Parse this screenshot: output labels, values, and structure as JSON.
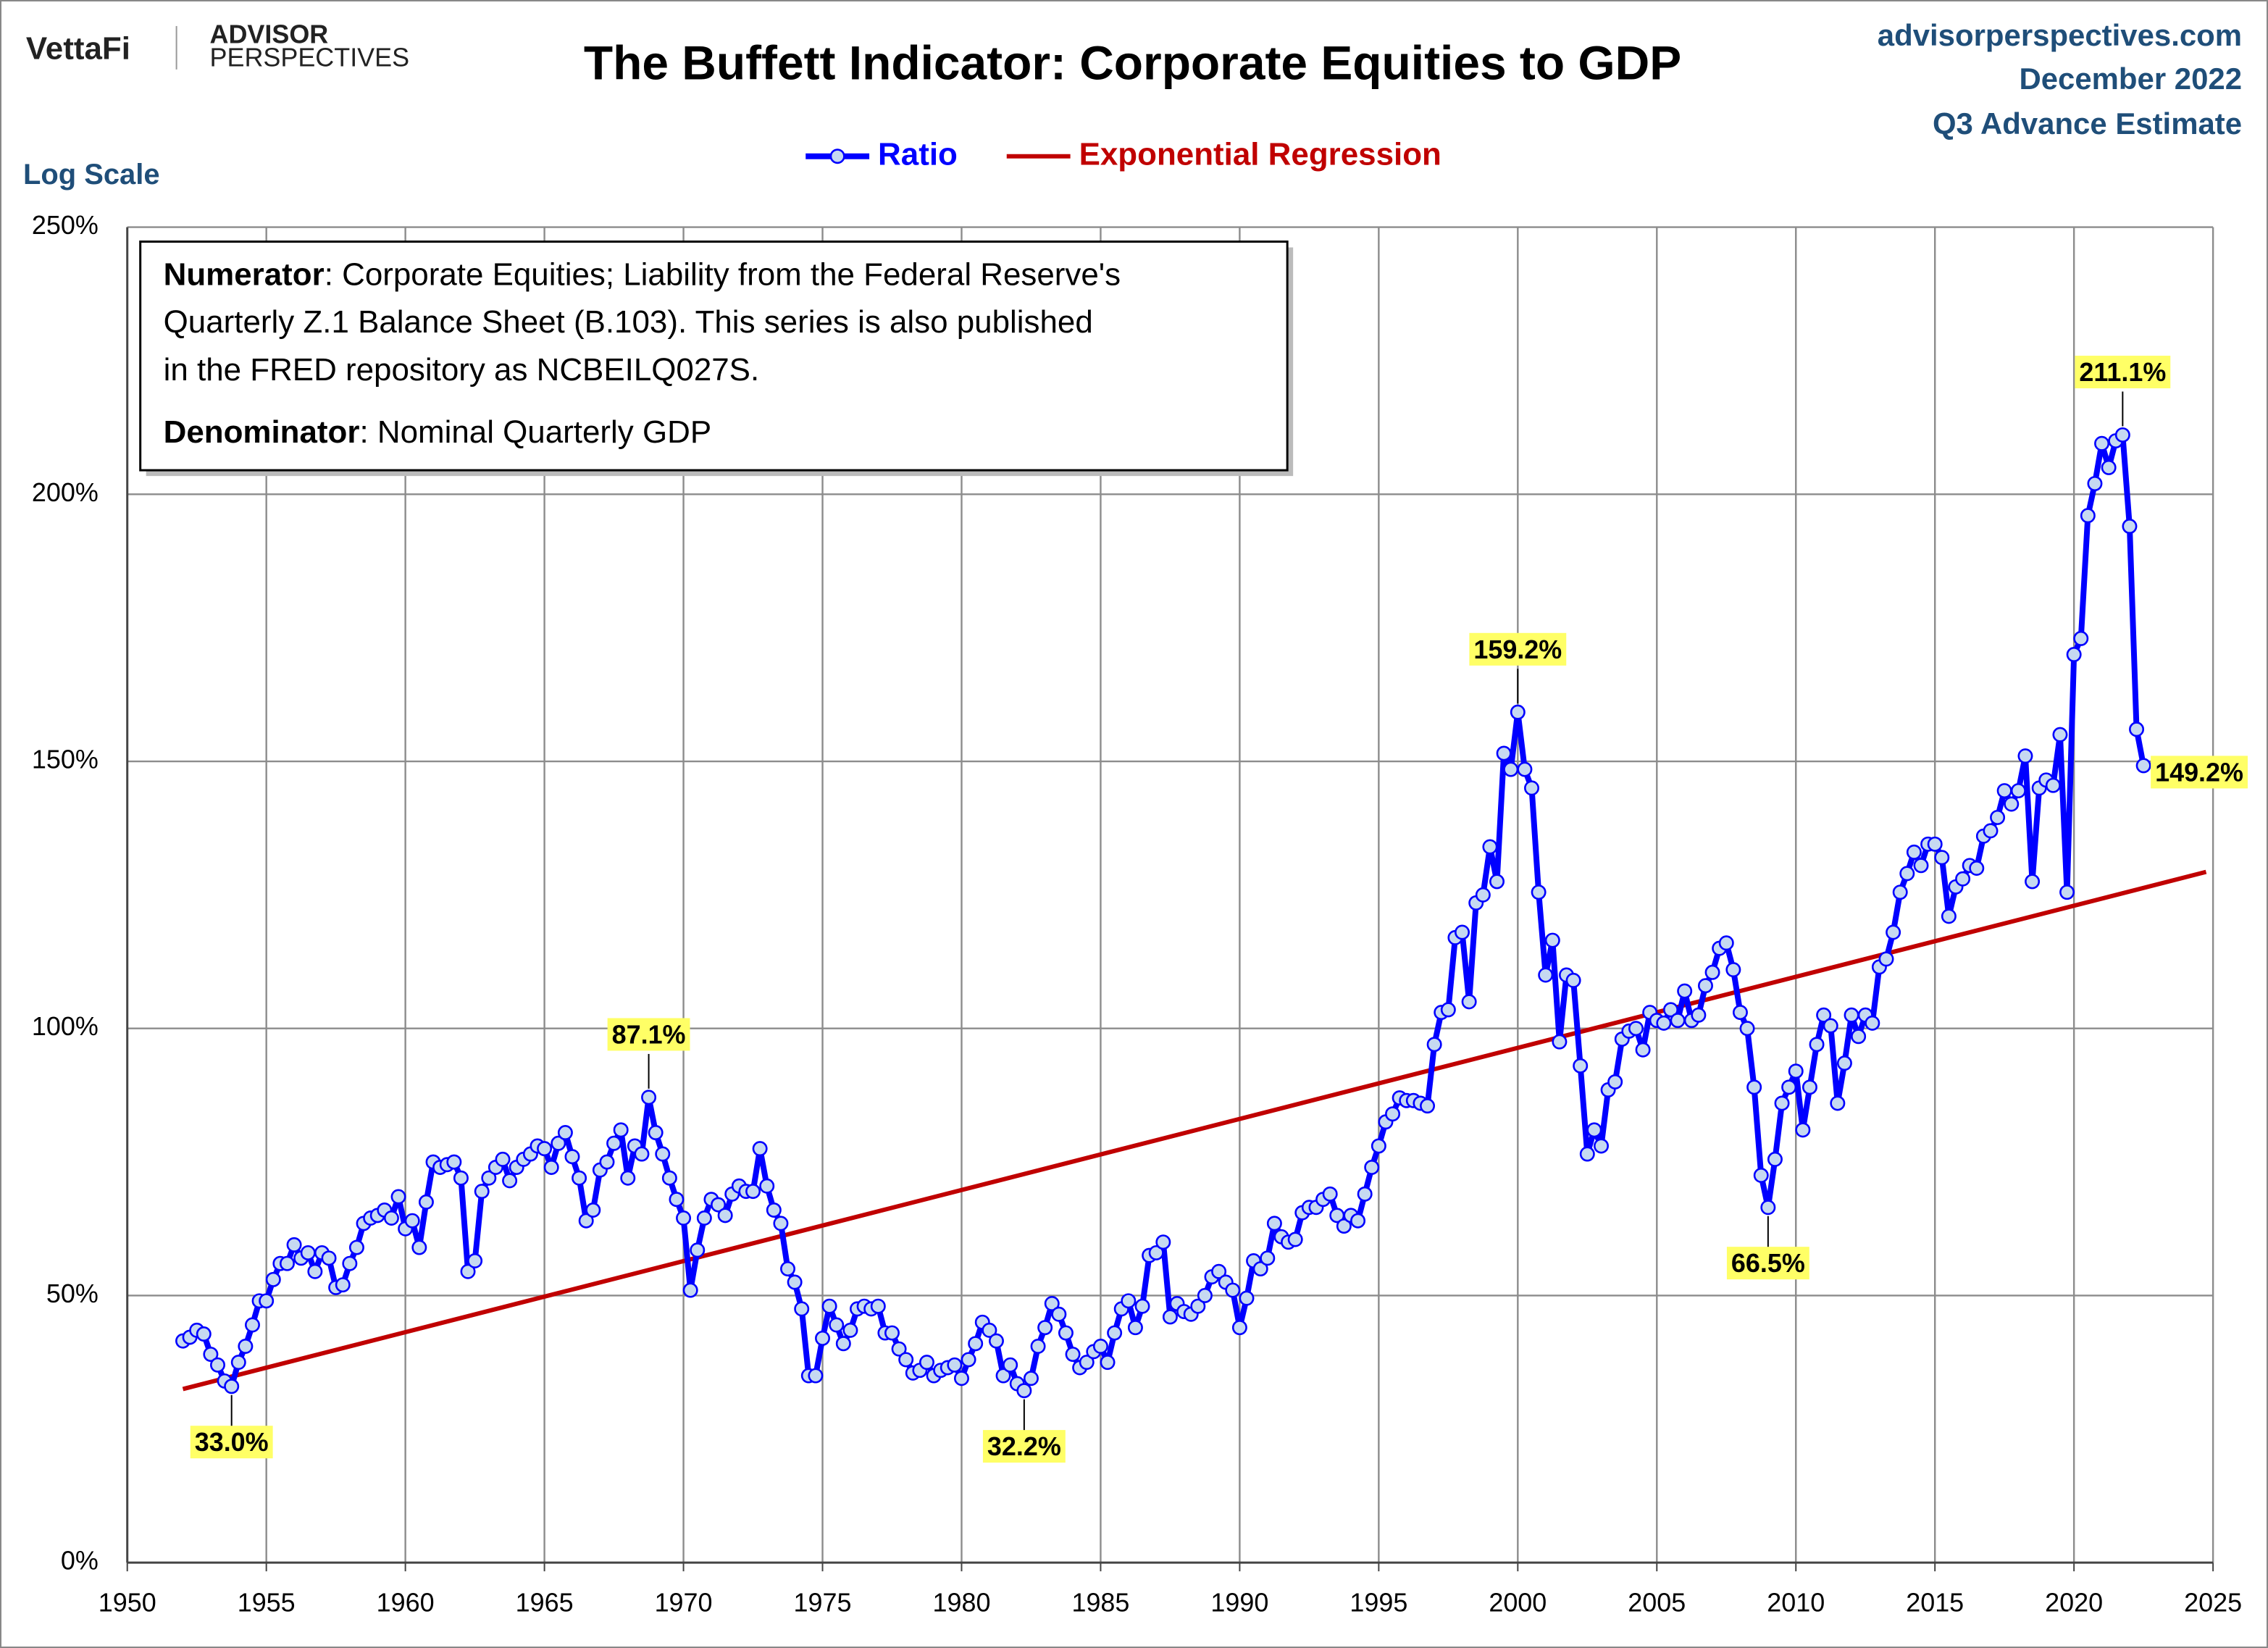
{
  "chart_data": {
    "type": "line",
    "title": "The Buffett Indicator: Corporate Equities to GDP",
    "brand": {
      "vettafi": "VettaFi",
      "advisor": "ADVISOR",
      "perspectives": "PERSPECTIVES"
    },
    "source": [
      "advisorperspectives.com",
      "December 2022",
      "Q3 Advance Estimate"
    ],
    "scale_note": "Log Scale",
    "note": {
      "numerator_label": "Numerator",
      "numerator_lines": [
        ": Corporate Equities; Liability from the Federal Reserve's",
        "Quarterly Z.1 Balance Sheet (B.103). This series is also published",
        "in the FRED repository as NCBEILQ027S."
      ],
      "denominator_label": "Denominator",
      "denominator_text": ": Nominal Quarterly GDP"
    },
    "xlim": [
      1950,
      2025
    ],
    "xticks": [
      1950,
      1955,
      1960,
      1965,
      1970,
      1975,
      1980,
      1985,
      1990,
      1995,
      2000,
      2005,
      2010,
      2015,
      2020,
      2025
    ],
    "ylim": [
      0,
      250
    ],
    "yticks": [
      {
        "value": 0,
        "label": "0%"
      },
      {
        "value": 50,
        "label": "50%"
      },
      {
        "value": 100,
        "label": "100%"
      },
      {
        "value": 150,
        "label": "150%"
      },
      {
        "value": 200,
        "label": "200%"
      },
      {
        "value": 250,
        "label": "250%"
      }
    ],
    "grid": true,
    "series": [
      {
        "name": "Ratio",
        "color": "#0000ff",
        "marker_fill": "#c6d9f1",
        "x": [
          1952,
          1952.25,
          1952.5,
          1952.75,
          1953,
          1953.25,
          1953.5,
          1953.75,
          1954,
          1954.25,
          1954.5,
          1954.75,
          1955,
          1955.25,
          1955.5,
          1955.75,
          1956,
          1956.25,
          1956.5,
          1956.75,
          1957,
          1957.25,
          1957.5,
          1957.75,
          1958,
          1958.25,
          1958.5,
          1958.75,
          1959,
          1959.25,
          1959.5,
          1959.75,
          1960,
          1960.25,
          1960.5,
          1960.75,
          1961,
          1961.25,
          1961.5,
          1961.75,
          1962,
          1962.25,
          1962.5,
          1962.75,
          1963,
          1963.25,
          1963.5,
          1963.75,
          1964,
          1964.25,
          1964.5,
          1964.75,
          1965,
          1965.25,
          1965.5,
          1965.75,
          1966,
          1966.25,
          1966.5,
          1966.75,
          1967,
          1967.25,
          1967.5,
          1967.75,
          1968,
          1968.25,
          1968.5,
          1968.75,
          1969,
          1969.25,
          1969.5,
          1969.75,
          1970,
          1970.25,
          1970.5,
          1970.75,
          1971,
          1971.25,
          1971.5,
          1971.75,
          1972,
          1972.25,
          1972.5,
          1972.75,
          1973,
          1973.25,
          1973.5,
          1973.75,
          1974,
          1974.25,
          1974.5,
          1974.75,
          1975,
          1975.25,
          1975.5,
          1975.75,
          1976,
          1976.25,
          1976.5,
          1976.75,
          1977,
          1977.25,
          1977.5,
          1977.75,
          1978,
          1978.25,
          1978.5,
          1978.75,
          1979,
          1979.25,
          1979.5,
          1979.75,
          1980,
          1980.25,
          1980.5,
          1980.75,
          1981,
          1981.25,
          1981.5,
          1981.75,
          1982,
          1982.25,
          1982.5,
          1982.75,
          1983,
          1983.25,
          1983.5,
          1983.75,
          1984,
          1984.25,
          1984.5,
          1984.75,
          1985,
          1985.25,
          1985.5,
          1985.75,
          1986,
          1986.25,
          1986.5,
          1986.75,
          1987,
          1987.25,
          1987.5,
          1987.75,
          1988,
          1988.25,
          1988.5,
          1988.75,
          1989,
          1989.25,
          1989.5,
          1989.75,
          1990,
          1990.25,
          1990.5,
          1990.75,
          1991,
          1991.25,
          1991.5,
          1991.75,
          1992,
          1992.25,
          1992.5,
          1992.75,
          1993,
          1993.25,
          1993.5,
          1993.75,
          1994,
          1994.25,
          1994.5,
          1994.75,
          1995,
          1995.25,
          1995.5,
          1995.75,
          1996,
          1996.25,
          1996.5,
          1996.75,
          1997,
          1997.25,
          1997.5,
          1997.75,
          1998,
          1998.25,
          1998.5,
          1998.75,
          1999,
          1999.25,
          1999.5,
          1999.75,
          2000,
          2000.25,
          2000.5,
          2000.75,
          2001,
          2001.25,
          2001.5,
          2001.75,
          2002,
          2002.25,
          2002.5,
          2002.75,
          2003,
          2003.25,
          2003.5,
          2003.75,
          2004,
          2004.25,
          2004.5,
          2004.75,
          2005,
          2005.25,
          2005.5,
          2005.75,
          2006,
          2006.25,
          2006.5,
          2006.75,
          2007,
          2007.25,
          2007.5,
          2007.75,
          2008,
          2008.25,
          2008.5,
          2008.75,
          2009,
          2009.25,
          2009.5,
          2009.75,
          2010,
          2010.25,
          2010.5,
          2010.75,
          2011,
          2011.25,
          2011.5,
          2011.75,
          2012,
          2012.25,
          2012.5,
          2012.75,
          2013,
          2013.25,
          2013.5,
          2013.75,
          2014,
          2014.25,
          2014.5,
          2014.75,
          2015,
          2015.25,
          2015.5,
          2015.75,
          2016,
          2016.25,
          2016.5,
          2016.75,
          2017,
          2017.25,
          2017.5,
          2017.75,
          2018,
          2018.25,
          2018.5,
          2018.75,
          2019,
          2019.25,
          2019.5,
          2019.75,
          2020,
          2020.25,
          2020.5,
          2020.75,
          2021,
          2021.25,
          2021.5,
          2021.75,
          2022,
          2022.25,
          2022.5
        ],
        "values": [
          41.5,
          42.2,
          43.5,
          42.8,
          39,
          37,
          34,
          33.0,
          37.5,
          40.5,
          44.5,
          49,
          49,
          53,
          56,
          56,
          59.5,
          57,
          58,
          54.5,
          58,
          57,
          51.5,
          52,
          56,
          59,
          63.5,
          64.5,
          65,
          66,
          64.5,
          68.5,
          62.5,
          64,
          59,
          67.5,
          75,
          74,
          74.5,
          75,
          72,
          54.5,
          56.5,
          69.5,
          72,
          74,
          75.5,
          71.5,
          74,
          75.5,
          76.5,
          78,
          77.5,
          74,
          78.5,
          80.5,
          76,
          72,
          64,
          66,
          73.5,
          75,
          78.5,
          81,
          72,
          78,
          76.5,
          87.1,
          80.5,
          76.5,
          72,
          68,
          64.5,
          51,
          58.5,
          64.5,
          68,
          67,
          65,
          69,
          70.5,
          69.5,
          69.5,
          77.5,
          70.5,
          66,
          63.5,
          55,
          52.5,
          47.5,
          35,
          35,
          42,
          48,
          44.5,
          41,
          43.5,
          47.5,
          48,
          47.5,
          48,
          43,
          43,
          40,
          38,
          35.5,
          36,
          37.5,
          35,
          36,
          36.5,
          37,
          34.5,
          38,
          41,
          45,
          43.5,
          41.5,
          35,
          37,
          33.5,
          32.2,
          34.5,
          40.5,
          44,
          48.5,
          46.5,
          43,
          39,
          36.5,
          37.5,
          39.5,
          40.5,
          37.5,
          43,
          47.5,
          49,
          44,
          48,
          57.5,
          58,
          60,
          46,
          48.5,
          47,
          46.5,
          48,
          50,
          53.5,
          54.5,
          52.5,
          51,
          44,
          49.5,
          56.5,
          55,
          57,
          63.5,
          61,
          60,
          60.5,
          65.5,
          66.5,
          66.5,
          68,
          69,
          65,
          63,
          65,
          64,
          69,
          74,
          78,
          82.5,
          84,
          87,
          86.5,
          86.5,
          86,
          85.5,
          97,
          103,
          103.5,
          117,
          118,
          105,
          123.5,
          125,
          134,
          127.5,
          151.5,
          148.5,
          159.2,
          148.5,
          145,
          125.5,
          110,
          116.5,
          97.5,
          110,
          109,
          93,
          76.5,
          81,
          78,
          88.5,
          90,
          98,
          99.5,
          100,
          96,
          103,
          101.5,
          101,
          103.5,
          101.5,
          107,
          101.5,
          102.5,
          108,
          110.5,
          115,
          116,
          111,
          103,
          100,
          89,
          72.5,
          66.5,
          75.5,
          86,
          89,
          92,
          81,
          89,
          97,
          102.5,
          100.5,
          86,
          93.5,
          102.5,
          98.5,
          102.5,
          101,
          111.5,
          113,
          118,
          125.5,
          129,
          133,
          130.5,
          134.5,
          134.5,
          132,
          121,
          126.5,
          128,
          130.5,
          130,
          136,
          137,
          139.5,
          144.5,
          142,
          144.5,
          151,
          127.5,
          145,
          146.5,
          145.5,
          155,
          125.5,
          170,
          173,
          196,
          202,
          209.5,
          205,
          210,
          211.1,
          194,
          156,
          149.2
        ],
        "value_labels": [
          null,
          null,
          null,
          null,
          null,
          null,
          null,
          "33.0%",
          null,
          null,
          null,
          null,
          null,
          null,
          null,
          null,
          null,
          null,
          null,
          null,
          null,
          null,
          null,
          null,
          null,
          null,
          null,
          null,
          null,
          null,
          null,
          null,
          null,
          null,
          null,
          null,
          null,
          null,
          null,
          null,
          null,
          null,
          null,
          null,
          null,
          null,
          null,
          null,
          null,
          null,
          null,
          null,
          null,
          null,
          null,
          null,
          null,
          null,
          null,
          null,
          null,
          null,
          null,
          null,
          null,
          null,
          null,
          "87.1%",
          null,
          null,
          null,
          null,
          null,
          null,
          null,
          null,
          null,
          null,
          null,
          null,
          null,
          null,
          null,
          null,
          null,
          null,
          null,
          null,
          null,
          null,
          null,
          null,
          null,
          null,
          null,
          null,
          null,
          null,
          null,
          null,
          null,
          null,
          null,
          null,
          null,
          null,
          null,
          null,
          null,
          null,
          null,
          null,
          null,
          null,
          null,
          null,
          null,
          null,
          null,
          null,
          null,
          "32.2%",
          null,
          null,
          null,
          null,
          null,
          null,
          null,
          null,
          null,
          null,
          null,
          null,
          null,
          null,
          null,
          null,
          null,
          null,
          null,
          null,
          null,
          null,
          null,
          null,
          null,
          null,
          null,
          null,
          null,
          null,
          null,
          null,
          null,
          null,
          null,
          null,
          null,
          null,
          null,
          null,
          null,
          null,
          null,
          null,
          null,
          null,
          null,
          null,
          null,
          null,
          null,
          null,
          null,
          null,
          null,
          null,
          null,
          null,
          null,
          null,
          null,
          null,
          null,
          null,
          null,
          null,
          null,
          null,
          null,
          null,
          "159.2%",
          null,
          null,
          null,
          null,
          null,
          null,
          null,
          null,
          null,
          null,
          null,
          null,
          null,
          null,
          null,
          null,
          null,
          null,
          null,
          null,
          null,
          null,
          null,
          null,
          null,
          null,
          null,
          null,
          null,
          null,
          null,
          null,
          null,
          null,
          null,
          "66.5%",
          null,
          null,
          null,
          null,
          null,
          null,
          null,
          null,
          null,
          null,
          null,
          null,
          null,
          null,
          null,
          null,
          null,
          null,
          null,
          null,
          null,
          null,
          null,
          null,
          null,
          null,
          null,
          null,
          null,
          null,
          null,
          null,
          null,
          null,
          null,
          null,
          null,
          null,
          null,
          null,
          null,
          null,
          null,
          null,
          null,
          null,
          null,
          null,
          null,
          null,
          "211.1%",
          null,
          null,
          "149.2%"
        ]
      },
      {
        "name": "Exponential Regression",
        "color": "#c00000",
        "x": [
          1952,
          2024.75
        ],
        "values": [
          32.5,
          129.3
        ]
      }
    ]
  }
}
